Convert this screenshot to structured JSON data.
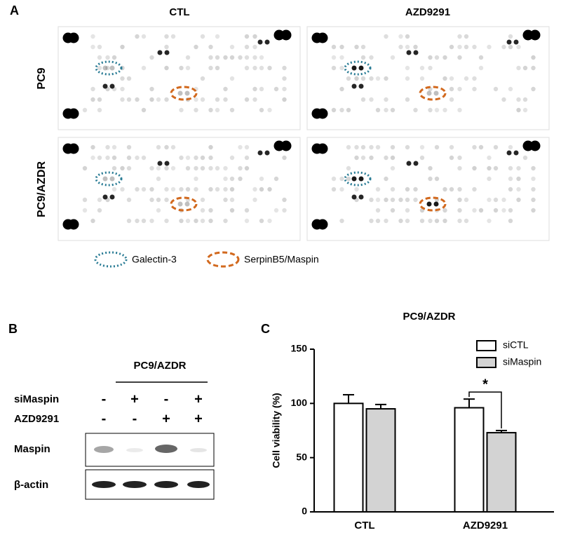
{
  "panel_a": {
    "letter": "A",
    "columns": [
      "CTL",
      "AZD9291"
    ],
    "rows": [
      "PC9",
      "PC9/AZDR"
    ],
    "legend": [
      "Galectin-3",
      "SerpinB5/Maspin"
    ]
  },
  "panel_b": {
    "letter": "B",
    "title": "PC9/AZDR",
    "conditions": [
      {
        "label": "siMaspin",
        "signs": [
          "-",
          "+",
          "-",
          "+"
        ]
      },
      {
        "label": "AZD9291",
        "signs": [
          "-",
          "-",
          "+",
          "+"
        ]
      }
    ],
    "blots": [
      "Maspin",
      "β-actin"
    ]
  },
  "chart_data": {
    "letter": "C",
    "type": "bar",
    "title": "PC9/AZDR",
    "ylabel": "Cell viability (%)",
    "categories": [
      "CTL",
      "AZD9291"
    ],
    "series": [
      {
        "name": "siCTL",
        "color": "#ffffff",
        "values": [
          100,
          96
        ],
        "errors": [
          8,
          8
        ]
      },
      {
        "name": "siMaspin",
        "color": "#d3d3d3",
        "values": [
          95,
          73
        ],
        "errors": [
          4,
          2
        ]
      }
    ],
    "ylim": [
      0,
      150
    ],
    "yticks": [
      0,
      50,
      100,
      150
    ],
    "annotation": "*"
  }
}
